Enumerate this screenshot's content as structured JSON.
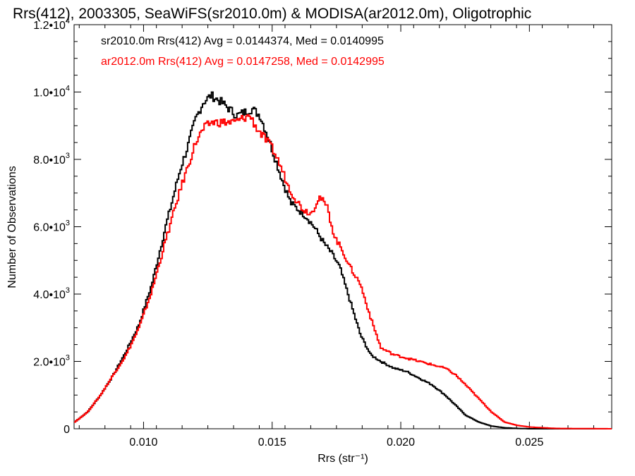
{
  "chart_data": {
    "type": "line",
    "title": "Rrs(412), 2003305, SeaWiFS(sr2010.0m) & MODISA(ar2012.0m), Oligotrophic",
    "xlabel": "Rrs (str⁻¹)",
    "ylabel": "Number of Observations",
    "xlim": [
      0.0073,
      0.0282
    ],
    "ylim": [
      0,
      12000
    ],
    "x_ticks": [
      {
        "value": 0.01,
        "label": "0.010"
      },
      {
        "value": 0.015,
        "label": "0.015"
      },
      {
        "value": 0.02,
        "label": "0.020"
      },
      {
        "value": 0.025,
        "label": "0.025"
      }
    ],
    "y_ticks": [
      {
        "value": 0,
        "mant": "0",
        "exp": ""
      },
      {
        "value": 2000,
        "mant": "2.0•10",
        "exp": "3"
      },
      {
        "value": 4000,
        "mant": "4.0•10",
        "exp": "3"
      },
      {
        "value": 6000,
        "mant": "6.0•10",
        "exp": "3"
      },
      {
        "value": 8000,
        "mant": "8.0•10",
        "exp": "3"
      },
      {
        "value": 10000,
        "mant": "1.0•10",
        "exp": "4"
      },
      {
        "value": 12000,
        "mant": "1.2•10",
        "exp": "4"
      }
    ],
    "grid": false,
    "legend_position": "top-left",
    "series": [
      {
        "name": "sr2010.0m Rrs(412) Avg = 0.0144374, Med = 0.0140995",
        "color": "#000000",
        "x": [
          0.0073,
          0.0078,
          0.0083,
          0.0088,
          0.0093,
          0.0098,
          0.0103,
          0.0108,
          0.0111,
          0.0114,
          0.0117,
          0.012,
          0.0123,
          0.0126,
          0.0128,
          0.013,
          0.0133,
          0.0136,
          0.0139,
          0.0142,
          0.0145,
          0.0148,
          0.0151,
          0.0154,
          0.0157,
          0.016,
          0.0163,
          0.0166,
          0.017,
          0.0173,
          0.0176,
          0.018,
          0.0184,
          0.0188,
          0.0192,
          0.0197,
          0.0202,
          0.0207,
          0.0212,
          0.0217,
          0.0221,
          0.0225,
          0.023,
          0.0235,
          0.024,
          0.0245,
          0.025,
          0.026,
          0.0282
        ],
        "y": [
          200,
          500,
          1000,
          1600,
          2300,
          3100,
          4300,
          5900,
          6800,
          7700,
          8400,
          9200,
          9700,
          9900,
          9800,
          9700,
          9500,
          9300,
          9400,
          9500,
          9300,
          8700,
          8000,
          7300,
          6700,
          6500,
          6300,
          6000,
          5500,
          5200,
          4800,
          3800,
          2800,
          2200,
          2000,
          1800,
          1700,
          1500,
          1300,
          1000,
          700,
          400,
          200,
          80,
          30,
          10,
          0,
          0,
          0
        ]
      },
      {
        "name": "ar2012.0m Rrs(412) Avg = 0.0147258, Med = 0.0142995",
        "color": "#ff0000",
        "x": [
          0.0073,
          0.0078,
          0.0083,
          0.0088,
          0.0093,
          0.0098,
          0.0103,
          0.0108,
          0.0111,
          0.0114,
          0.0117,
          0.012,
          0.0123,
          0.0126,
          0.0129,
          0.0132,
          0.0135,
          0.0138,
          0.0141,
          0.0144,
          0.0147,
          0.015,
          0.0153,
          0.0156,
          0.0159,
          0.0162,
          0.0165,
          0.0168,
          0.0171,
          0.0174,
          0.0177,
          0.018,
          0.0184,
          0.0188,
          0.0192,
          0.0197,
          0.0202,
          0.0207,
          0.0212,
          0.0217,
          0.0221,
          0.0225,
          0.023,
          0.0235,
          0.024,
          0.0245,
          0.025,
          0.026,
          0.0282
        ],
        "y": [
          200,
          500,
          1000,
          1600,
          2200,
          3000,
          4100,
          5500,
          6300,
          7100,
          7800,
          8500,
          8900,
          9100,
          9100,
          9100,
          9100,
          9200,
          9300,
          8900,
          8600,
          8300,
          7800,
          7200,
          6800,
          6500,
          6400,
          6900,
          6600,
          5700,
          5300,
          4800,
          4300,
          3300,
          2400,
          2200,
          2100,
          2000,
          1900,
          1800,
          1600,
          1300,
          900,
          500,
          200,
          100,
          50,
          10,
          0
        ]
      }
    ]
  }
}
